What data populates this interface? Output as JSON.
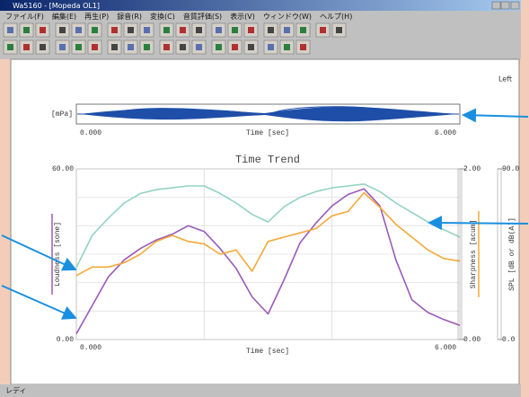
{
  "window": {
    "title": "Wa5160 - [Mopeda OL1]",
    "menu": [
      "ファイル(F)",
      "編集(E)",
      "再生(P)",
      "録音(R)",
      "変換(C)",
      "音質評価(S)",
      "表示(V)",
      "ウィンドウ(W)",
      "ヘルプ(H)"
    ],
    "status": "レディ"
  },
  "document": {
    "channel": "Left"
  },
  "waveform": {
    "y_label": "[mPa]",
    "x_label": "Time [sec]",
    "xticks": [
      {
        "value": 0,
        "label": "0.000"
      },
      {
        "value": 6,
        "label": "6.000"
      }
    ]
  },
  "chart_data": {
    "type": "line",
    "title": "Time Trend",
    "x_label": "Time [sec]",
    "xlim": [
      0,
      6
    ],
    "xticks": [
      {
        "value": 0,
        "label": "0.000"
      },
      {
        "value": 2,
        "label": null
      },
      {
        "value": 4,
        "label": null
      },
      {
        "value": 6,
        "label": "6.000"
      }
    ],
    "y_label": "Loudness [sone]",
    "ylim": [
      0,
      60
    ],
    "yticks": [
      {
        "value": 0,
        "label": "0.00"
      },
      {
        "value": 10,
        "label": null
      },
      {
        "value": 20,
        "label": null
      },
      {
        "value": 30,
        "label": null
      },
      {
        "value": 40,
        "label": null
      },
      {
        "value": 50,
        "label": null
      },
      {
        "value": 60,
        "label": "60.00"
      }
    ],
    "y2_label": "Sharpness [acum]",
    "y2lim": [
      0,
      2
    ],
    "y2ticks": [
      {
        "value": 0,
        "label": "0.00"
      },
      {
        "value": 2,
        "label": "2.00"
      }
    ],
    "y3_label": "SPL [dB or dB(A)]",
    "y3lim": [
      0,
      90
    ],
    "y3ticks": [
      {
        "value": 0,
        "label": "0.0"
      },
      {
        "value": 90,
        "label": "90.0"
      }
    ],
    "grid": true,
    "x": [
      0,
      0.25,
      0.5,
      0.75,
      1,
      1.25,
      1.5,
      1.75,
      2,
      2.25,
      2.5,
      2.75,
      3,
      3.25,
      3.5,
      3.75,
      4,
      4.25,
      4.5,
      4.75,
      5,
      5.25,
      5.5,
      5.75,
      6
    ],
    "series": [
      {
        "name": "Loudness",
        "axis": "y",
        "color": "#9a5bb8",
        "values": [
          2,
          12,
          22,
          28,
          32,
          35,
          37,
          40,
          38,
          32,
          25,
          15,
          9,
          21,
          34,
          41,
          47,
          51,
          53,
          47,
          28,
          14,
          9.5,
          7,
          5
        ]
      },
      {
        "name": "Sharpness",
        "axis": "y2",
        "color": "#f5a83a",
        "values": [
          0.75,
          0.85,
          0.85,
          0.9,
          1.0,
          1.15,
          1.22,
          1.15,
          1.12,
          1.0,
          1.05,
          0.8,
          1.15,
          1.2,
          1.25,
          1.3,
          1.45,
          1.5,
          1.72,
          1.55,
          1.35,
          1.2,
          1.05,
          0.95,
          0.92
        ]
      },
      {
        "name": "SPL",
        "axis": "y3",
        "color": "#93d3c2",
        "values": [
          38,
          55,
          64,
          72,
          77,
          79,
          80,
          81,
          81,
          77,
          72,
          66,
          62,
          70,
          75,
          78,
          80,
          81,
          82,
          78,
          72,
          67,
          62,
          58,
          54
        ]
      }
    ]
  }
}
